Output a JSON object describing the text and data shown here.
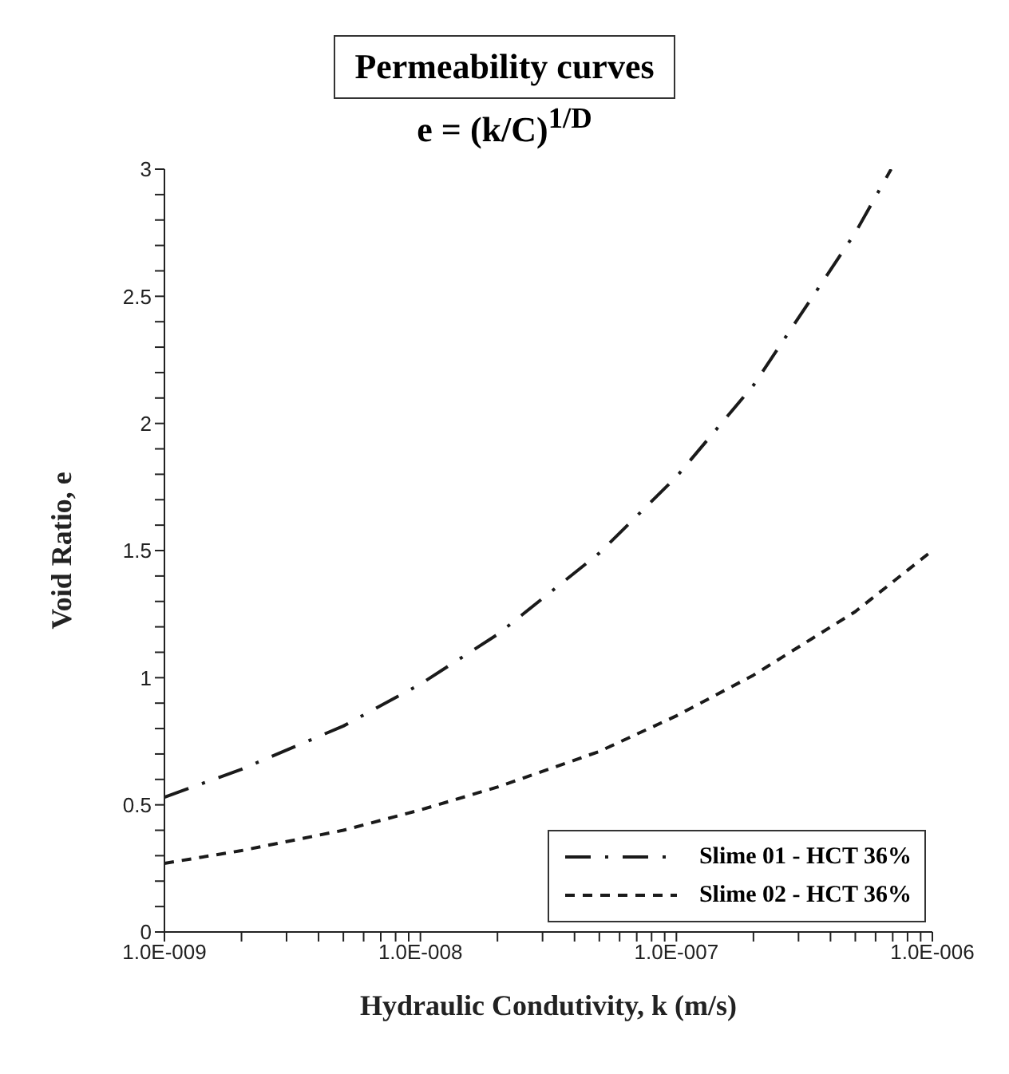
{
  "chart_data": {
    "type": "line",
    "title": "Permeability curves",
    "subtitle": "e = (k/C)$^{1/D}$",
    "xlabel": "Hydraulic Condutivity, k (m/s)",
    "ylabel": "Void Ratio, e",
    "log": "x",
    "legend": "bottom right",
    "marker": "none",
    "xlim": [
      1e-09,
      1e-06
    ],
    "xticks": [
      {
        "value": 1e-09,
        "label": "1.0E-009"
      },
      {
        "value": 2e-09,
        "label": null
      },
      {
        "value": 3e-09,
        "label": null
      },
      {
        "value": 4e-09,
        "label": null
      },
      {
        "value": 5e-09,
        "label": null
      },
      {
        "value": 6e-09,
        "label": null
      },
      {
        "value": 7e-09,
        "label": null
      },
      {
        "value": 8e-09,
        "label": null
      },
      {
        "value": 9e-09,
        "label": null
      },
      {
        "value": 1e-08,
        "label": "1.0E-008"
      },
      {
        "value": 2e-08,
        "label": null
      },
      {
        "value": 3e-08,
        "label": null
      },
      {
        "value": 4e-08,
        "label": null
      },
      {
        "value": 5e-08,
        "label": null
      },
      {
        "value": 6e-08,
        "label": null
      },
      {
        "value": 7e-08,
        "label": null
      },
      {
        "value": 8e-08,
        "label": null
      },
      {
        "value": 9e-08,
        "label": null
      },
      {
        "value": 1e-07,
        "label": "1.0E-007"
      },
      {
        "value": 2e-07,
        "label": null
      },
      {
        "value": 3e-07,
        "label": null
      },
      {
        "value": 4e-07,
        "label": null
      },
      {
        "value": 5e-07,
        "label": null
      },
      {
        "value": 6e-07,
        "label": null
      },
      {
        "value": 7e-07,
        "label": null
      },
      {
        "value": 8e-07,
        "label": null
      },
      {
        "value": 9e-07,
        "label": null
      },
      {
        "value": 1e-06,
        "label": "1.0E-006"
      }
    ],
    "ylim": [
      0,
      3
    ],
    "yticks": [
      0,
      {
        "value": 0.1,
        "label": null
      },
      {
        "value": 0.2,
        "label": null
      },
      {
        "value": 0.3,
        "label": null
      },
      {
        "value": 0.4,
        "label": null
      },
      0.5,
      {
        "value": 0.6,
        "label": null
      },
      {
        "value": 0.7,
        "label": null
      },
      {
        "value": 0.8,
        "label": null
      },
      {
        "value": 0.9,
        "label": null
      },
      1,
      {
        "value": 1.1,
        "label": null
      },
      {
        "value": 1.2,
        "label": null
      },
      {
        "value": 1.3,
        "label": null
      },
      {
        "value": 1.4,
        "label": null
      },
      1.5,
      {
        "value": 1.6,
        "label": null
      },
      {
        "value": 1.7,
        "label": null
      },
      {
        "value": 1.8,
        "label": null
      },
      {
        "value": 1.9,
        "label": null
      },
      2,
      {
        "value": 2.1,
        "label": null
      },
      {
        "value": 2.2,
        "label": null
      },
      {
        "value": 2.3,
        "label": null
      },
      {
        "value": 2.4,
        "label": null
      },
      2.5,
      {
        "value": 2.6,
        "label": null
      },
      {
        "value": 2.7,
        "label": null
      },
      {
        "value": 2.8,
        "label": null
      },
      {
        "value": 2.9,
        "label": null
      },
      3
    ],
    "series": [
      {
        "name": "Slime 01 - HCT 36%",
        "color": "#1a1a1a",
        "line_style": "dashdot",
        "x": [
          1e-09,
          2e-09,
          5e-09,
          1e-08,
          2e-08,
          5e-08,
          1e-07,
          2e-07,
          5e-07,
          6.9e-07
        ],
        "values": [
          0.53,
          0.64,
          0.81,
          0.975,
          1.17,
          1.49,
          1.79,
          2.15,
          2.75,
          3.0
        ]
      },
      {
        "name": "Slime 02 - HCT 36%",
        "color": "#1a1a1a",
        "line_style": "dashed",
        "x": [
          1e-09,
          2e-09,
          5e-09,
          1e-08,
          2e-08,
          5e-08,
          1e-07,
          2e-07,
          5e-07,
          1e-06
        ],
        "values": [
          0.27,
          0.32,
          0.4,
          0.48,
          0.57,
          0.71,
          0.85,
          1.01,
          1.26,
          1.5
        ]
      }
    ]
  }
}
